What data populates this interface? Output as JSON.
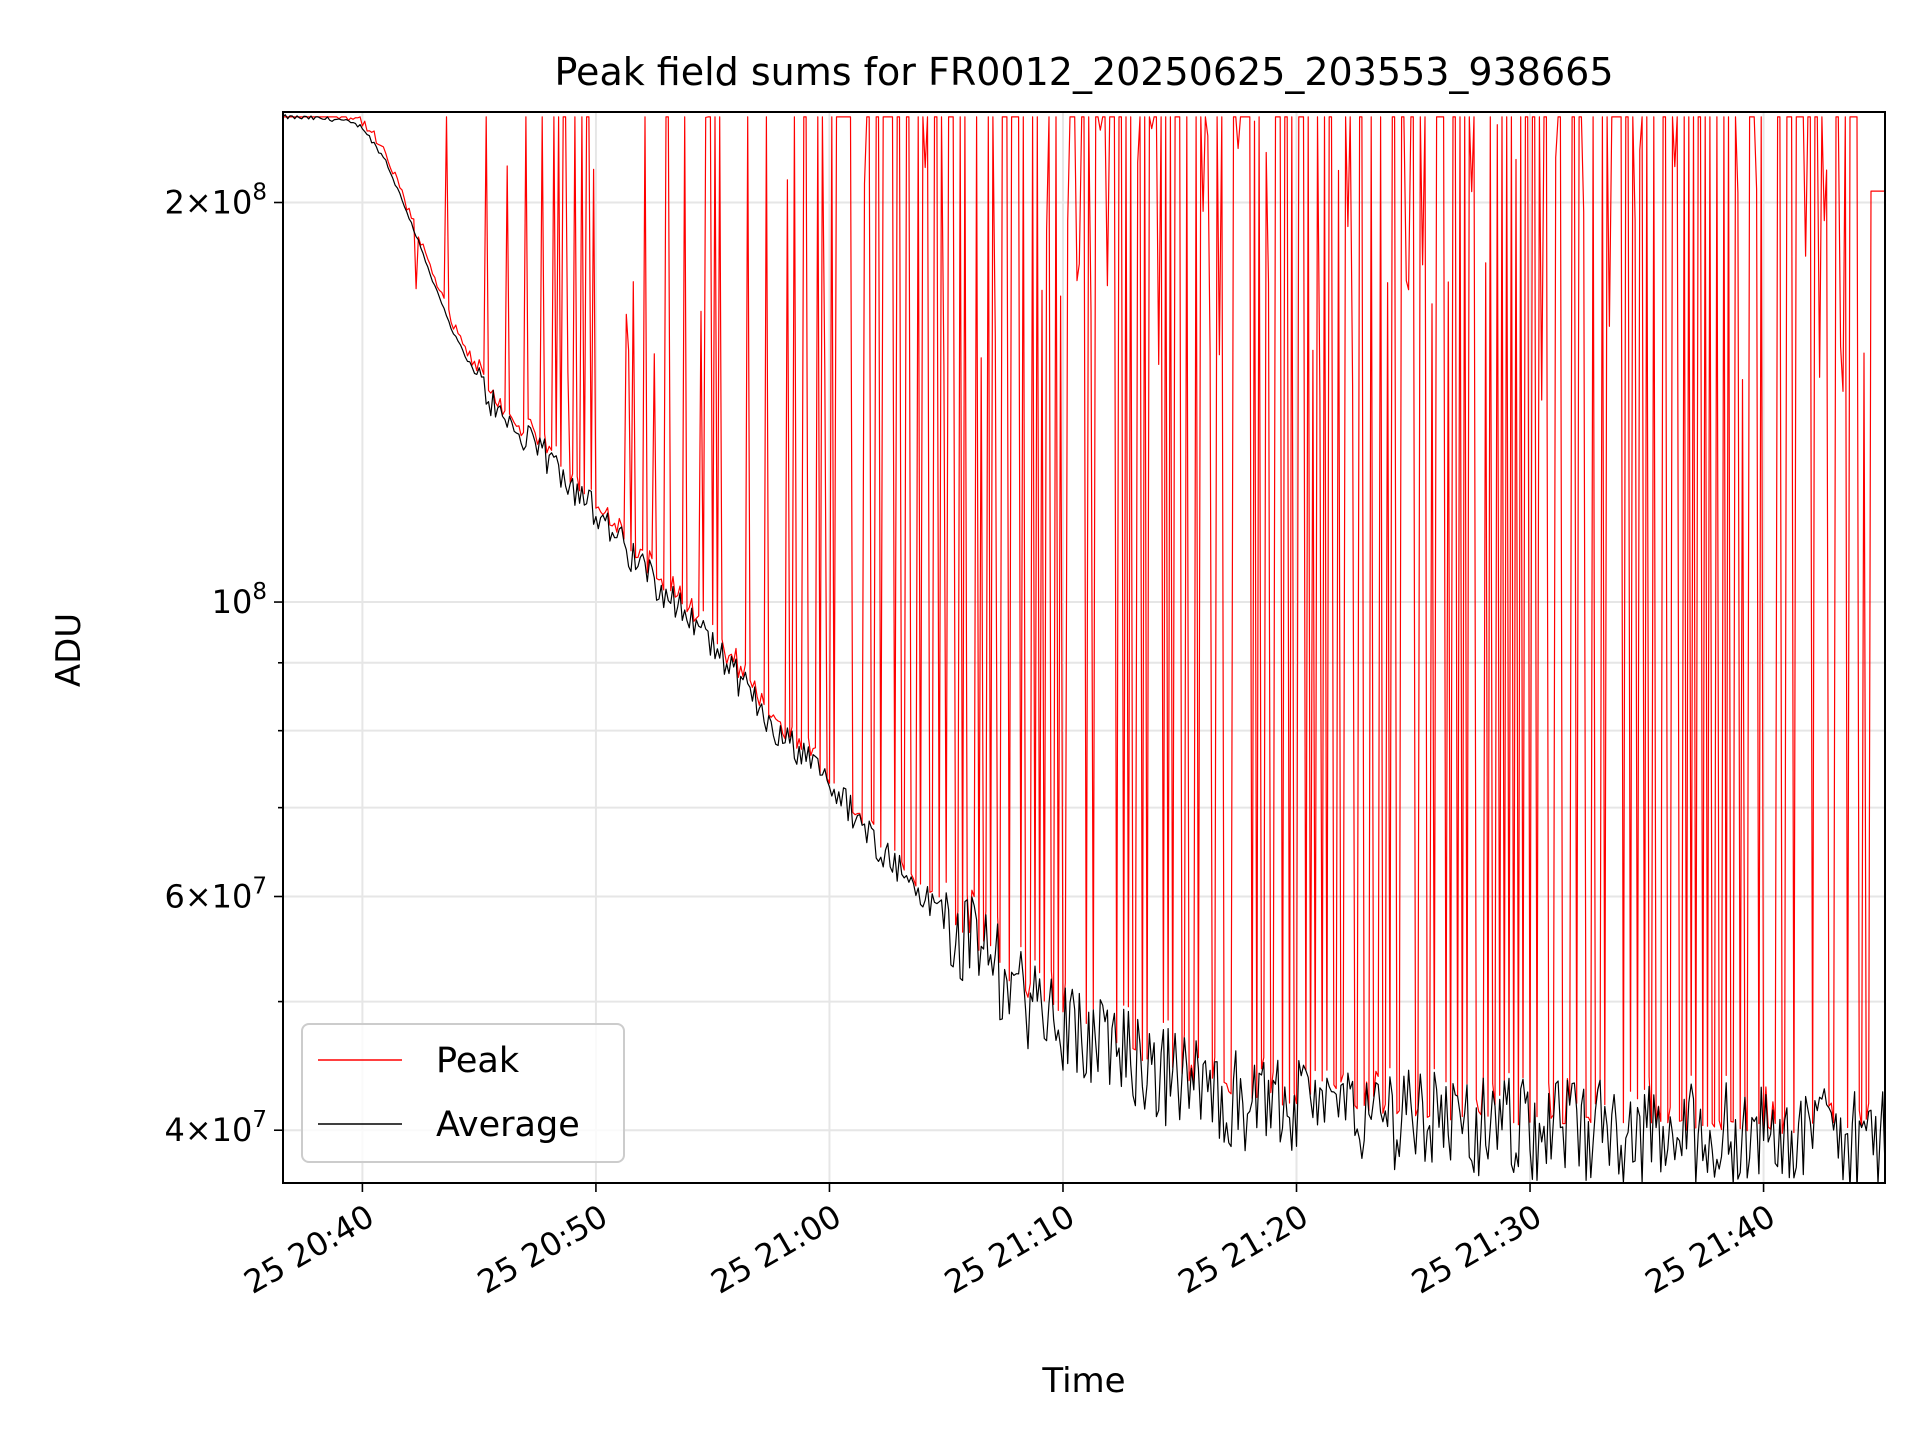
{
  "chart_data": {
    "type": "line",
    "title": "Peak field sums for FR0012_20250625_203553_938665",
    "xlabel": "Time",
    "ylabel": "ADU",
    "yscale": "log",
    "ylim": [
      36500000,
      234000000
    ],
    "xlim_minutes_from_20_40": [
      -3.4,
      65.2
    ],
    "x_ticks": [
      {
        "label": "25 20:40",
        "minutes": 0
      },
      {
        "label": "25 20:50",
        "minutes": 10
      },
      {
        "label": "25 21:00",
        "minutes": 20
      },
      {
        "label": "25 21:10",
        "minutes": 30
      },
      {
        "label": "25 21:20",
        "minutes": 40
      },
      {
        "label": "25 21:30",
        "minutes": 50
      },
      {
        "label": "25 21:40",
        "minutes": 60
      }
    ],
    "y_major_ticks": [
      {
        "value": 40000000,
        "mant": "4",
        "exp": "7"
      },
      {
        "value": 60000000,
        "mant": "6",
        "exp": "7"
      },
      {
        "value": 100000000,
        "mant": "",
        "exp": "8"
      },
      {
        "value": 200000000,
        "mant": "2",
        "exp": "8"
      }
    ],
    "y_grid_values": [
      40000000,
      50000000,
      60000000,
      70000000,
      80000000,
      90000000,
      100000000,
      200000000
    ],
    "grid": true,
    "legend_position": "lower-left",
    "series": [
      {
        "name": "Peak",
        "color": "#ff0000"
      },
      {
        "name": "Average",
        "color": "#000000"
      }
    ],
    "sampling_minutes": 0.1,
    "average_anchors": [
      [
        -3.4,
        232000000
      ],
      [
        -1,
        231000000
      ],
      [
        0,
        228000000
      ],
      [
        1,
        215000000
      ],
      [
        2,
        195000000
      ],
      [
        3,
        175000000
      ],
      [
        4,
        158000000
      ],
      [
        5,
        147000000
      ],
      [
        6,
        137000000
      ],
      [
        8,
        128000000
      ],
      [
        10,
        117000000
      ],
      [
        12,
        106000000
      ],
      [
        14,
        97500000
      ],
      [
        16,
        88000000
      ],
      [
        18,
        79000000
      ],
      [
        20,
        73000000
      ],
      [
        22,
        66000000
      ],
      [
        24,
        60000000
      ],
      [
        26,
        55500000
      ],
      [
        28,
        51000000
      ],
      [
        30,
        48500000
      ],
      [
        32,
        46000000
      ],
      [
        34,
        44500000
      ],
      [
        36,
        43200000
      ],
      [
        38,
        42200000
      ],
      [
        40,
        41500000
      ],
      [
        45,
        40800000
      ],
      [
        50,
        40300000
      ],
      [
        55,
        40000000
      ],
      [
        60,
        39800000
      ],
      [
        65.2,
        39600000
      ]
    ],
    "peak_ceiling": 232000000,
    "peak_last_value": 204000000,
    "peak_spike_probability": 0.55
  }
}
